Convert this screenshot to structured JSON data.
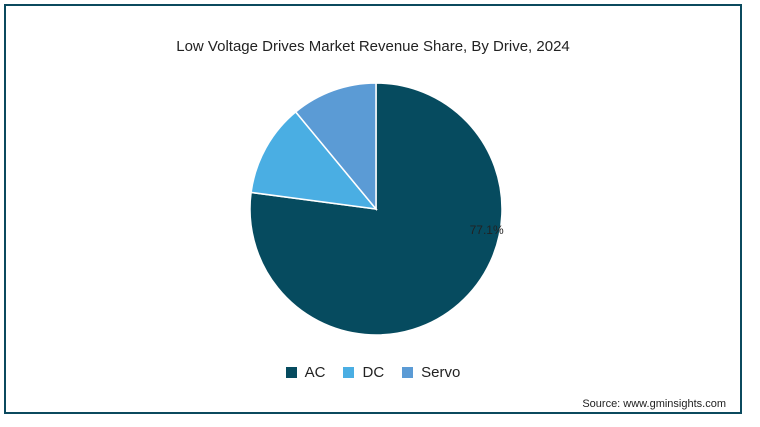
{
  "chart_data": {
    "type": "pie",
    "title": "Low Voltage Drives Market Revenue Share, By Drive, 2024",
    "slices": [
      {
        "label": "AC",
        "value": 77.1,
        "color": "#064b5f",
        "data_label": "77.1%"
      },
      {
        "label": "DC",
        "value": 11.9,
        "color": "#4aaee3",
        "data_label": ""
      },
      {
        "label": "Servo",
        "value": 11.0,
        "color": "#5b9bd5",
        "data_label": ""
      }
    ],
    "legend_position": "bottom"
  },
  "source": "Source: www.gminsights.com"
}
